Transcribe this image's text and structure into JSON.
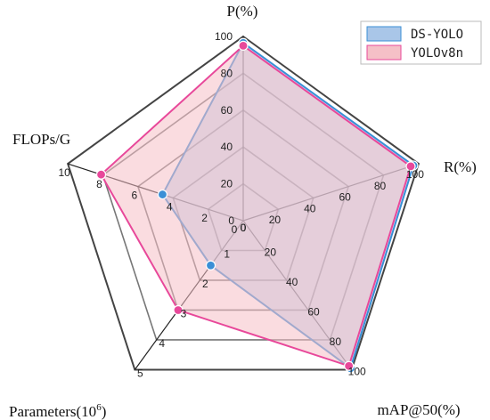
{
  "chart_data": {
    "type": "radar",
    "axes": [
      {
        "title": "P(%)",
        "max": 100,
        "ticks": [
          "0",
          "20",
          "40",
          "60",
          "80",
          "100"
        ]
      },
      {
        "title": "R(%)",
        "max": 100,
        "ticks": [
          "0",
          "20",
          "40",
          "60",
          "80",
          "100"
        ]
      },
      {
        "title": "mAP@50(%)",
        "max": 100,
        "ticks": [
          "0",
          "20",
          "40",
          "60",
          "80",
          "100"
        ]
      },
      {
        "title": "Parameters(10",
        "title_sup": "6",
        "title_tail": ")",
        "max": 5,
        "ticks": [
          "0",
          "1",
          "2",
          "3",
          "4",
          "5"
        ]
      },
      {
        "title": "FLOPs/G",
        "max": 10,
        "ticks": [
          "0",
          "2",
          "4",
          "6",
          "8",
          "10"
        ]
      }
    ],
    "series": [
      {
        "name": "DS-YOLO",
        "values": [
          96.5,
          97.0,
          99.0,
          1.5,
          4.6
        ],
        "color": "#3a8fd6",
        "fill": "#a9c6e8"
      },
      {
        "name": "YOLOv8n",
        "values": [
          95.0,
          95.5,
          97.5,
          3.0,
          8.1
        ],
        "color": "#e8489a",
        "fill": "#f5c0c7"
      }
    ],
    "grid_rings": 5,
    "legend_position": "top-right"
  }
}
